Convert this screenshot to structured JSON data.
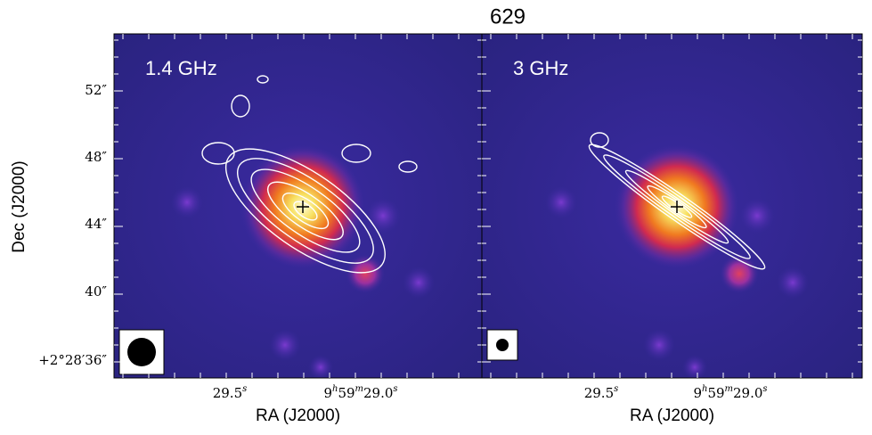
{
  "title": "629",
  "y_axis_label": "Dec (J2000)",
  "y_ticks": [
    "52″",
    "48″",
    "44″",
    "40″",
    "+2°28′36″"
  ],
  "panels": [
    {
      "label": "1.4 GHz",
      "x_axis_label": "RA (J2000)",
      "x_ticks": [
        {
          "parts": [
            "29.5",
            "s"
          ]
        },
        {
          "parts": [
            "9",
            "h",
            "59",
            "m",
            "29.0",
            "s"
          ]
        }
      ]
    },
    {
      "label": "3 GHz",
      "x_axis_label": "RA (J2000)",
      "x_ticks": [
        {
          "parts": [
            "29.5",
            "s"
          ]
        },
        {
          "parts": [
            "9",
            "h",
            "59",
            "m",
            "29.0",
            "s"
          ]
        }
      ]
    }
  ]
}
